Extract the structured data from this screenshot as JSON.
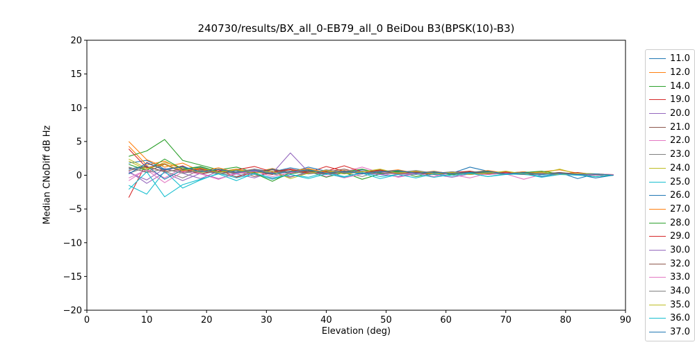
{
  "chart_data": {
    "type": "line",
    "title": "240730/results/BX_all_0-EB79_all_0 BeiDou B3(BPSK(10)-B3)",
    "xlabel": "Elevation (deg)",
    "ylabel": "Median CNoDiff dB Hz",
    "xlim": [
      0,
      90
    ],
    "ylim": [
      -20,
      20
    ],
    "xticks": [
      0,
      10,
      20,
      30,
      40,
      50,
      60,
      70,
      80,
      90
    ],
    "yticks": [
      -20,
      -15,
      -10,
      -5,
      0,
      5,
      10,
      15,
      20
    ],
    "grid": false,
    "legend_position": "outside-right-top",
    "x": [
      7,
      10,
      13,
      16,
      19,
      22,
      25,
      28,
      31,
      34,
      37,
      40,
      43,
      46,
      49,
      52,
      55,
      58,
      61,
      64,
      67,
      70,
      73,
      76,
      79,
      82,
      85,
      88
    ],
    "series": [
      {
        "name": "11.0",
        "color": "#1f77b4",
        "values": [
          1.8,
          2.2,
          0.9,
          1.2,
          0.4,
          0.8,
          0.3,
          0.9,
          0.5,
          1.1,
          0.6,
          0.2,
          0.7,
          0.3,
          0.5,
          0.2,
          0.6,
          0.3,
          0.4,
          0.2,
          0.5,
          0.3,
          0.4,
          0.2,
          0.3,
          0.1,
          -0.4,
          0.0
        ]
      },
      {
        "name": "12.0",
        "color": "#ff7f0e",
        "values": [
          4.3,
          1.5,
          2.1,
          0.8,
          1.2,
          0.5,
          0.9,
          0.4,
          1.0,
          0.3,
          0.8,
          0.5,
          0.2,
          0.6,
          0.4,
          0.7,
          0.2,
          0.5,
          0.3,
          0.6,
          0.2,
          0.4,
          0.3,
          0.5,
          0.8,
          0.3,
          0.2,
          0.1
        ]
      },
      {
        "name": "14.0",
        "color": "#2ca02c",
        "values": [
          2.8,
          3.6,
          5.3,
          2.2,
          1.5,
          0.8,
          1.2,
          0.4,
          0.9,
          0.2,
          0.6,
          -0.3,
          0.4,
          -0.6,
          0.2,
          0.5,
          -0.2,
          0.3,
          0.1,
          0.4,
          0.2,
          0.5,
          0.1,
          0.3,
          0.2,
          0.1,
          -0.2,
          0.0
        ]
      },
      {
        "name": "19.0",
        "color": "#d62728",
        "values": [
          -3.3,
          1.9,
          0.7,
          1.4,
          0.2,
          0.8,
          -0.3,
          0.5,
          0.1,
          0.9,
          0.4,
          1.3,
          0.6,
          0.2,
          0.8,
          0.3,
          0.5,
          0.2,
          0.4,
          0.1,
          0.3,
          0.5,
          0.2,
          0.4,
          0.1,
          0.2,
          0.0,
          0.1
        ]
      },
      {
        "name": "20.0",
        "color": "#9467bd",
        "values": [
          0.6,
          -1.2,
          0.4,
          -0.8,
          0.3,
          -0.5,
          0.2,
          -0.4,
          0.5,
          -0.2,
          0.3,
          0.6,
          -0.3,
          0.4,
          0.1,
          -0.2,
          0.3,
          0.1,
          -0.3,
          0.2,
          0.4,
          0.1,
          0.3,
          -0.2,
          0.1,
          0.3,
          0.0,
          0.1
        ]
      },
      {
        "name": "21.0",
        "color": "#8c564b",
        "values": [
          1.1,
          0.5,
          1.6,
          0.4,
          0.9,
          0.2,
          0.7,
          -0.2,
          0.4,
          0.8,
          0.2,
          0.5,
          0.9,
          0.3,
          0.6,
          0.1,
          0.4,
          0.2,
          0.5,
          0.3,
          0.1,
          0.4,
          0.2,
          0.3,
          0.1,
          0.2,
          0.1,
          0.0
        ]
      },
      {
        "name": "22.0",
        "color": "#e377c2",
        "values": [
          -0.8,
          0.9,
          -0.4,
          1.1,
          0.3,
          -0.6,
          0.4,
          0.1,
          -0.5,
          0.3,
          0.7,
          -0.2,
          0.5,
          1.2,
          0.4,
          -0.3,
          0.2,
          0.5,
          0.1,
          -0.4,
          0.3,
          0.2,
          -0.6,
          0.1,
          0.3,
          0.0,
          0.2,
          0.1
        ]
      },
      {
        "name": "23.0",
        "color": "#7f7f7f",
        "values": [
          0.3,
          1.2,
          0.6,
          -0.4,
          0.8,
          0.3,
          -0.2,
          0.6,
          0.2,
          -0.3,
          0.5,
          0.1,
          0.4,
          -0.2,
          0.6,
          0.3,
          0.1,
          0.4,
          0.2,
          0.5,
          0.1,
          0.3,
          0.2,
          0.1,
          0.4,
          0.2,
          0.0,
          0.1
        ]
      },
      {
        "name": "24.0",
        "color": "#bcbd22",
        "values": [
          2.1,
          0.8,
          1.9,
          1.1,
          0.4,
          0.9,
          0.3,
          0.7,
          0.2,
          0.5,
          0.9,
          0.3,
          0.6,
          0.2,
          0.4,
          0.1,
          0.5,
          0.2,
          0.3,
          0.6,
          0.2,
          0.4,
          0.1,
          0.3,
          0.9,
          0.2,
          0.1,
          0.0
        ]
      },
      {
        "name": "25.0",
        "color": "#17becf",
        "values": [
          -1.5,
          -2.8,
          0.6,
          -1.9,
          -0.7,
          0.3,
          -0.4,
          0.2,
          -0.6,
          0.1,
          -0.3,
          0.4,
          -0.2,
          0.3,
          -0.5,
          0.1,
          0.2,
          -0.3,
          0.1,
          0.3,
          -0.2,
          0.2,
          0.1,
          -0.1,
          0.2,
          0.0,
          0.1,
          0.0
        ]
      },
      {
        "name": "26.0",
        "color": "#1f77b4",
        "values": [
          0.9,
          1.4,
          -0.6,
          0.8,
          1.2,
          0.4,
          0.7,
          0.2,
          0.9,
          0.4,
          1.2,
          0.6,
          0.3,
          0.8,
          0.4,
          0.6,
          0.2,
          0.5,
          0.3,
          1.2,
          0.6,
          0.3,
          0.5,
          0.2,
          0.4,
          -0.5,
          0.2,
          0.0
        ]
      },
      {
        "name": "27.0",
        "color": "#ff7f0e",
        "values": [
          5.0,
          2.3,
          1.2,
          1.8,
          0.6,
          1.1,
          0.4,
          0.8,
          0.3,
          0.6,
          1.0,
          0.4,
          0.7,
          0.3,
          0.5,
          0.8,
          0.3,
          0.6,
          0.2,
          0.4,
          0.7,
          0.3,
          0.5,
          0.2,
          0.3,
          0.1,
          0.2,
          0.0
        ]
      },
      {
        "name": "28.0",
        "color": "#2ca02c",
        "values": [
          1.6,
          0.7,
          2.4,
          0.9,
          1.3,
          0.5,
          0.8,
          0.3,
          -0.9,
          0.4,
          0.7,
          0.2,
          0.5,
          0.9,
          0.3,
          0.6,
          0.2,
          0.4,
          0.1,
          0.3,
          0.5,
          0.2,
          0.4,
          0.6,
          0.2,
          0.3,
          0.1,
          0.0
        ]
      },
      {
        "name": "29.0",
        "color": "#d62728",
        "values": [
          3.9,
          1.1,
          1.7,
          0.6,
          1.0,
          0.4,
          0.8,
          1.3,
          0.5,
          0.9,
          0.3,
          0.6,
          1.4,
          0.5,
          0.8,
          0.3,
          0.5,
          0.2,
          0.4,
          0.6,
          0.2,
          0.4,
          0.1,
          0.3,
          0.2,
          0.4,
          0.1,
          0.0
        ]
      },
      {
        "name": "30.0",
        "color": "#9467bd",
        "values": [
          0.4,
          -0.7,
          1.0,
          0.3,
          -0.5,
          0.6,
          0.2,
          0.8,
          0.3,
          3.3,
          0.5,
          0.2,
          0.6,
          0.3,
          0.1,
          0.4,
          0.2,
          0.5,
          0.3,
          0.1,
          0.4,
          0.2,
          0.1,
          0.3,
          0.2,
          0.1,
          0.0,
          0.1
        ]
      },
      {
        "name": "32.0",
        "color": "#8c564b",
        "values": [
          0.7,
          1.3,
          0.5,
          0.9,
          0.2,
          0.6,
          0.3,
          0.5,
          0.8,
          0.4,
          0.6,
          0.2,
          0.5,
          0.3,
          0.7,
          0.2,
          0.4,
          0.1,
          0.3,
          0.5,
          0.2,
          0.3,
          0.1,
          0.2,
          0.4,
          0.1,
          0.2,
          0.0
        ]
      },
      {
        "name": "33.0",
        "color": "#e377c2",
        "values": [
          -0.4,
          0.8,
          -1.1,
          0.5,
          0.2,
          -0.6,
          0.3,
          0.6,
          -0.2,
          0.4,
          0.8,
          0.3,
          -0.4,
          0.2,
          0.5,
          0.1,
          0.3,
          -0.2,
          0.4,
          0.2,
          0.1,
          0.3,
          0.2,
          0.4,
          0.1,
          0.2,
          0.0,
          0.1
        ]
      },
      {
        "name": "34.0",
        "color": "#7f7f7f",
        "values": [
          1.2,
          0.4,
          0.9,
          0.3,
          0.7,
          0.2,
          0.5,
          0.9,
          0.3,
          0.6,
          0.2,
          0.8,
          0.4,
          0.6,
          0.2,
          0.4,
          0.7,
          0.3,
          0.5,
          0.2,
          0.4,
          0.1,
          0.3,
          0.2,
          0.1,
          0.3,
          0.1,
          0.0
        ]
      },
      {
        "name": "35.0",
        "color": "#bcbd22",
        "values": [
          2.4,
          1.0,
          1.6,
          0.7,
          1.1,
          0.4,
          0.8,
          0.3,
          0.6,
          -0.5,
          0.3,
          0.7,
          0.2,
          0.5,
          0.9,
          0.3,
          0.6,
          0.2,
          0.4,
          0.1,
          0.3,
          0.6,
          0.2,
          0.4,
          0.1,
          0.3,
          0.2,
          0.0
        ]
      },
      {
        "name": "36.0",
        "color": "#17becf",
        "values": [
          -2.1,
          0.5,
          -3.2,
          -1.4,
          -0.6,
          0.2,
          -0.8,
          0.3,
          -0.4,
          0.1,
          -0.5,
          0.2,
          -0.3,
          0.4,
          -0.2,
          0.1,
          -0.4,
          0.2,
          -0.1,
          0.3,
          -0.2,
          0.1,
          0.2,
          -0.3,
          0.1,
          0.0,
          -0.2,
          0.0
        ]
      },
      {
        "name": "37.0",
        "color": "#1f77b4",
        "values": [
          0.2,
          1.8,
          0.8,
          1.3,
          0.5,
          0.9,
          0.4,
          0.7,
          0.2,
          0.5,
          0.8,
          0.3,
          0.6,
          0.2,
          0.5,
          0.7,
          0.3,
          0.5,
          0.2,
          0.4,
          0.6,
          0.2,
          0.4,
          0.1,
          0.3,
          0.1,
          0.2,
          0.0
        ]
      }
    ]
  }
}
